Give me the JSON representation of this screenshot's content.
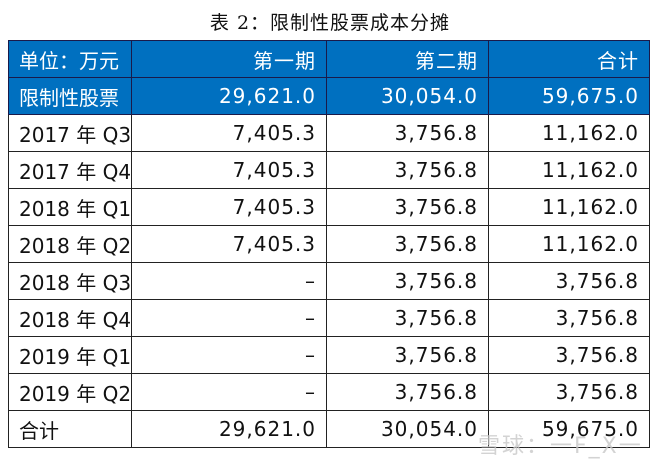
{
  "title": "表 2：限制性股票成本分摊",
  "header": [
    "单位：万元",
    "第一期",
    "第二期",
    "合计"
  ],
  "rows": [
    [
      "限制性股票",
      "29,621.0",
      "30,054.0",
      "59,675.0"
    ],
    [
      "2017 年 Q3",
      "7,405.3",
      "3,756.8",
      "11,162.0"
    ],
    [
      "2017 年 Q4",
      "7,405.3",
      "3,756.8",
      "11,162.0"
    ],
    [
      "2018 年 Q1",
      "7,405.3",
      "3,756.8",
      "11,162.0"
    ],
    [
      "2018 年 Q2",
      "7,405.3",
      "3,756.8",
      "11,162.0"
    ],
    [
      "2018 年 Q3",
      "–",
      "3,756.8",
      "3,756.8"
    ],
    [
      "2018 年 Q4",
      "–",
      "3,756.8",
      "3,756.8"
    ],
    [
      "2019 年 Q1",
      "–",
      "3,756.8",
      "3,756.8"
    ],
    [
      "2019 年 Q2",
      "–",
      "3,756.8",
      "3,756.8"
    ],
    [
      "合计",
      "29,621.0",
      "30,054.0",
      "59,675.0"
    ]
  ],
  "watermark": "雪球：一F_X一",
  "colors": {
    "header_bg": "#0070C0",
    "header_text": "#ffffff"
  }
}
